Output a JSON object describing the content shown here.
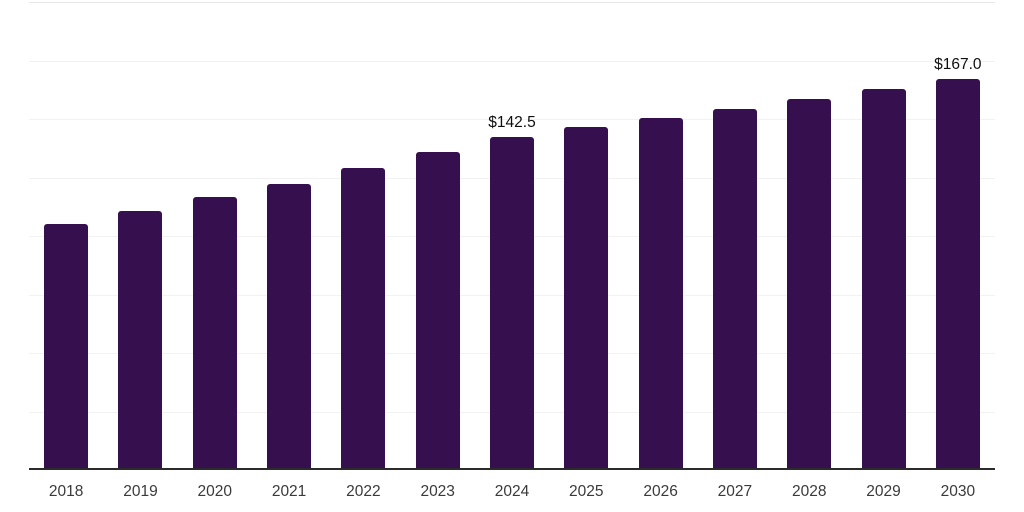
{
  "chart_data": {
    "type": "bar",
    "title": "",
    "xlabel": "",
    "ylabel": "",
    "categories": [
      "2018",
      "2019",
      "2020",
      "2021",
      "2022",
      "2023",
      "2024",
      "2025",
      "2026",
      "2027",
      "2028",
      "2029",
      "2030"
    ],
    "values": [
      105.0,
      110.7,
      116.7,
      122.4,
      129.0,
      135.8,
      142.5,
      146.4,
      150.3,
      154.4,
      158.5,
      162.7,
      167.0
    ],
    "data_labels": {
      "2024": "$142.5",
      "2030": "$167.0"
    },
    "ylim": [
      0,
      200
    ],
    "grid_step": 25,
    "grid_on": true,
    "legend": "none",
    "colors": {
      "bar": "#36104E",
      "axis_line": "#2B2B2B",
      "gridline": "#F2F2F2",
      "top_gridline": "#E7E7E7",
      "tick_label": "#3A3A3A",
      "data_label": "#0F0F0F",
      "background": "#FFFFFF"
    }
  }
}
